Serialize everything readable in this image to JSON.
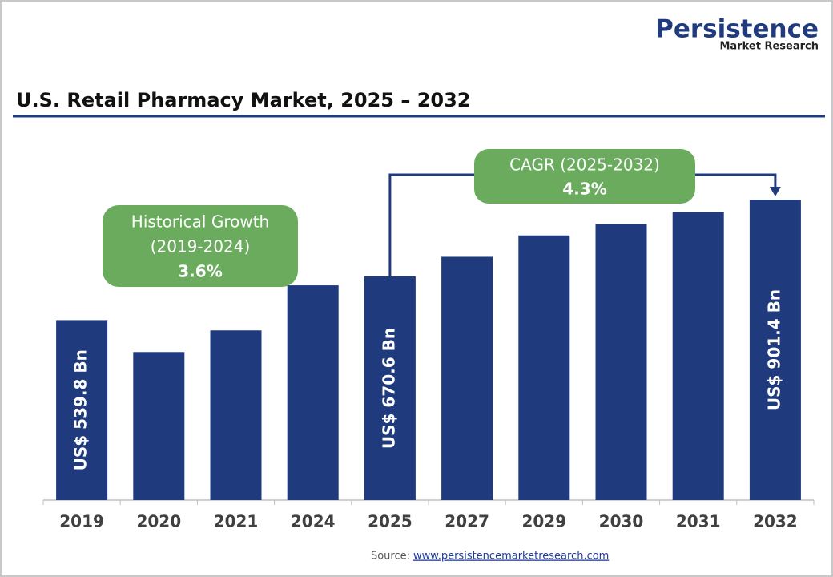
{
  "chart_data": {
    "type": "bar",
    "logo": {
      "name": "Persistence",
      "subtitle": "Market Research"
    },
    "title": "U.S. Retail Pharmacy Market, 2025 – 2032",
    "categories": [
      "2019",
      "2020",
      "2021",
      "2024",
      "2025",
      "2027",
      "2029",
      "2030",
      "2031",
      "2032"
    ],
    "values": [
      539.8,
      444,
      509,
      644,
      670.6,
      729.6,
      793.8,
      828,
      864,
      901.4
    ],
    "value_labels": [
      "US$ 539.8 Bn",
      null,
      null,
      null,
      "US$ 670.6 Bn",
      null,
      null,
      null,
      null,
      "US$ 901.4 Bn"
    ],
    "color": "#1f3b7d",
    "annotations": [
      {
        "lines": [
          "Historical Growth",
          "(2019-2024)"
        ],
        "value": "3.6%"
      },
      {
        "lines": [
          "CAGR (2025-2032)"
        ],
        "value": "4.3%"
      }
    ],
    "source": {
      "label": "Source:",
      "link": "www.persistencemarketresearch.com"
    }
  }
}
